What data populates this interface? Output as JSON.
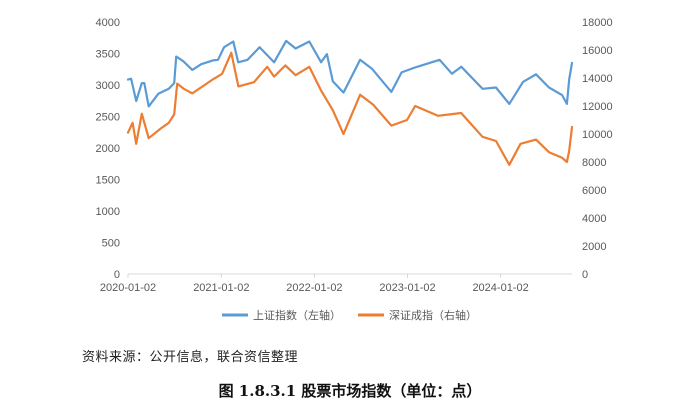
{
  "chart_data": {
    "type": "line",
    "x_type": "date",
    "x_ticks": [
      "2020-01-02",
      "2021-01-02",
      "2022-01-02",
      "2023-01-02",
      "2024-01-02"
    ],
    "ylim_left": [
      0,
      4000
    ],
    "yticks_left": [
      0,
      500,
      1000,
      1500,
      2000,
      2500,
      3000,
      3500,
      4000
    ],
    "ylim_right": [
      0,
      18000
    ],
    "yticks_right": [
      0,
      2000,
      4000,
      6000,
      8000,
      10000,
      12000,
      14000,
      16000,
      18000
    ],
    "grid": false,
    "legend_position": "bottom",
    "series": [
      {
        "name": "上证指数（左轴）",
        "axis": "left",
        "color": "#5B9BD5",
        "points": [
          [
            "2020-01-02",
            3085
          ],
          [
            "2020-01-14",
            3100
          ],
          [
            "2020-02-03",
            2746
          ],
          [
            "2020-02-25",
            3030
          ],
          [
            "2020-03-06",
            3030
          ],
          [
            "2020-03-23",
            2660
          ],
          [
            "2020-04-30",
            2860
          ],
          [
            "2020-06-10",
            2940
          ],
          [
            "2020-07-01",
            3030
          ],
          [
            "2020-07-09",
            3450
          ],
          [
            "2020-08-05",
            3380
          ],
          [
            "2020-09-10",
            3240
          ],
          [
            "2020-10-15",
            3330
          ],
          [
            "2020-11-30",
            3390
          ],
          [
            "2020-12-20",
            3400
          ],
          [
            "2021-01-13",
            3600
          ],
          [
            "2021-02-18",
            3690
          ],
          [
            "2021-03-09",
            3360
          ],
          [
            "2021-04-15",
            3400
          ],
          [
            "2021-06-01",
            3600
          ],
          [
            "2021-07-28",
            3360
          ],
          [
            "2021-09-13",
            3700
          ],
          [
            "2021-10-20",
            3580
          ],
          [
            "2021-12-13",
            3690
          ],
          [
            "2022-01-28",
            3360
          ],
          [
            "2022-02-20",
            3490
          ],
          [
            "2022-03-15",
            3060
          ],
          [
            "2022-04-26",
            2880
          ],
          [
            "2022-06-30",
            3400
          ],
          [
            "2022-08-15",
            3260
          ],
          [
            "2022-10-31",
            2890
          ],
          [
            "2022-12-10",
            3200
          ],
          [
            "2023-02-01",
            3280
          ],
          [
            "2023-05-08",
            3400
          ],
          [
            "2023-06-25",
            3180
          ],
          [
            "2023-08-01",
            3290
          ],
          [
            "2023-10-23",
            2940
          ],
          [
            "2023-12-15",
            2960
          ],
          [
            "2024-02-05",
            2700
          ],
          [
            "2024-03-30",
            3050
          ],
          [
            "2024-05-20",
            3170
          ],
          [
            "2024-07-10",
            2960
          ],
          [
            "2024-08-30",
            2840
          ],
          [
            "2024-09-18",
            2700
          ],
          [
            "2024-09-27",
            3090
          ],
          [
            "2024-10-08",
            3350
          ]
        ]
      },
      {
        "name": "深证成指（右轴）",
        "axis": "right",
        "color": "#ED7D31",
        "points": [
          [
            "2020-01-02",
            10100
          ],
          [
            "2020-01-20",
            10800
          ],
          [
            "2020-02-03",
            9300
          ],
          [
            "2020-02-25",
            11450
          ],
          [
            "2020-03-23",
            9700
          ],
          [
            "2020-05-10",
            10400
          ],
          [
            "2020-06-10",
            10800
          ],
          [
            "2020-07-01",
            11400
          ],
          [
            "2020-07-13",
            13600
          ],
          [
            "2020-08-10",
            13200
          ],
          [
            "2020-09-10",
            12900
          ],
          [
            "2020-11-30",
            13900
          ],
          [
            "2021-01-05",
            14300
          ],
          [
            "2021-02-10",
            15800
          ],
          [
            "2021-03-10",
            13400
          ],
          [
            "2021-05-10",
            13700
          ],
          [
            "2021-07-01",
            14800
          ],
          [
            "2021-07-28",
            14100
          ],
          [
            "2021-09-10",
            14900
          ],
          [
            "2021-10-20",
            14200
          ],
          [
            "2021-12-13",
            14800
          ],
          [
            "2022-01-28",
            13100
          ],
          [
            "2022-03-15",
            11700
          ],
          [
            "2022-04-26",
            10000
          ],
          [
            "2022-06-30",
            12800
          ],
          [
            "2022-08-20",
            12100
          ],
          [
            "2022-10-31",
            10600
          ],
          [
            "2022-12-31",
            11000
          ],
          [
            "2023-02-01",
            12000
          ],
          [
            "2023-05-01",
            11300
          ],
          [
            "2023-07-31",
            11500
          ],
          [
            "2023-10-23",
            9800
          ],
          [
            "2023-12-15",
            9500
          ],
          [
            "2024-02-05",
            7800
          ],
          [
            "2024-03-20",
            9300
          ],
          [
            "2024-05-20",
            9600
          ],
          [
            "2024-07-10",
            8700
          ],
          [
            "2024-08-30",
            8300
          ],
          [
            "2024-09-18",
            8000
          ],
          [
            "2024-09-27",
            8800
          ],
          [
            "2024-10-08",
            10500
          ]
        ]
      }
    ]
  },
  "legend": {
    "items": [
      {
        "label": "上证指数（左轴）",
        "color": "#5B9BD5"
      },
      {
        "label": "深证成指（右轴）",
        "color": "#ED7D31"
      }
    ]
  },
  "source_note": "资料来源：公开信息，联合资信整理",
  "caption": "图 1.8.3.1    股票市场指数（单位：点）"
}
